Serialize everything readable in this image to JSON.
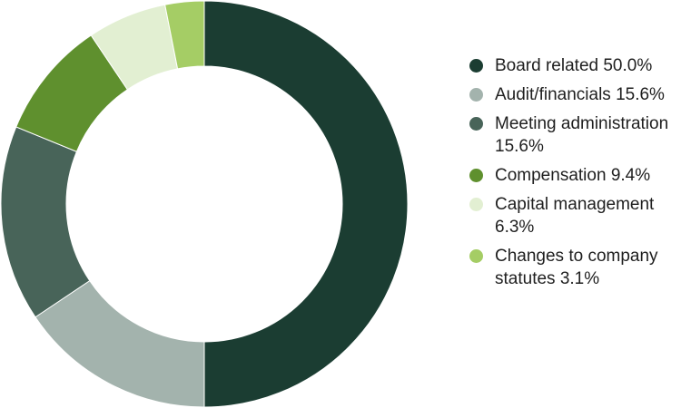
{
  "chart_data": {
    "type": "pie",
    "title": "",
    "donut": true,
    "legend_position": "right",
    "slices": [
      {
        "label": "Board related",
        "value": 50.0,
        "display": "50.0%",
        "color": "#1b3d32"
      },
      {
        "label": "Audit/financials",
        "value": 15.6,
        "display": "15.6%",
        "color": "#a3b3ad"
      },
      {
        "label": "Meeting administration",
        "value": 15.6,
        "display": "15.6%",
        "color": "#486459"
      },
      {
        "label": "Compensation",
        "value": 9.4,
        "display": "9.4%",
        "color": "#5f902e"
      },
      {
        "label": "Capital management",
        "value": 6.3,
        "display": "6.3%",
        "color": "#e2efd2"
      },
      {
        "label": "Changes to company statutes",
        "value": 3.1,
        "display": "3.1%",
        "color": "#a5cd65"
      }
    ]
  }
}
